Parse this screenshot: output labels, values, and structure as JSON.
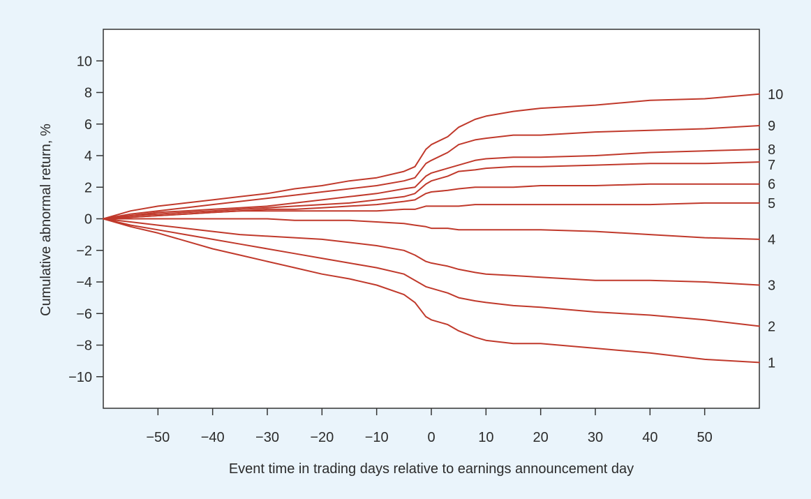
{
  "chart_data": {
    "type": "line",
    "xlabel": "Event time in trading days relative to earnings announcement day",
    "ylabel": "Cumulative abnormal return, %",
    "xlim": [
      -60,
      60
    ],
    "ylim": [
      -12,
      12
    ],
    "xticks": [
      "−50",
      "−40",
      "−30",
      "−20",
      "−10",
      "0",
      "10",
      "20",
      "30",
      "40",
      "50"
    ],
    "xtick_values": [
      -50,
      -40,
      -30,
      -20,
      -10,
      0,
      10,
      20,
      30,
      40,
      50
    ],
    "yticks": [
      "10",
      "8",
      "6",
      "4",
      "2",
      "0",
      "−2",
      "−4",
      "−6",
      "−8",
      "−10"
    ],
    "ytick_values": [
      10,
      8,
      6,
      4,
      2,
      0,
      -2,
      -4,
      -6,
      -8,
      -10
    ],
    "grid": false,
    "line_color": "#c0392b",
    "x": [
      -60,
      -55,
      -50,
      -45,
      -40,
      -35,
      -30,
      -25,
      -20,
      -15,
      -10,
      -5,
      -3,
      -1,
      0,
      3,
      5,
      8,
      10,
      15,
      20,
      30,
      40,
      50,
      60
    ],
    "series": [
      {
        "name": "10",
        "values": [
          0,
          0.5,
          0.8,
          1.0,
          1.2,
          1.4,
          1.6,
          1.9,
          2.1,
          2.4,
          2.6,
          3.0,
          3.3,
          4.4,
          4.7,
          5.2,
          5.8,
          6.3,
          6.5,
          6.8,
          7.0,
          7.2,
          7.5,
          7.6,
          7.9
        ]
      },
      {
        "name": "9",
        "values": [
          0,
          0.3,
          0.5,
          0.7,
          0.9,
          1.1,
          1.3,
          1.5,
          1.7,
          1.9,
          2.1,
          2.4,
          2.6,
          3.5,
          3.7,
          4.2,
          4.7,
          5.0,
          5.1,
          5.3,
          5.3,
          5.5,
          5.6,
          5.7,
          5.9
        ]
      },
      {
        "name": "8",
        "values": [
          0,
          0.2,
          0.4,
          0.5,
          0.6,
          0.7,
          0.8,
          1.0,
          1.2,
          1.4,
          1.6,
          1.9,
          2.0,
          2.7,
          2.9,
          3.2,
          3.4,
          3.7,
          3.8,
          3.9,
          3.9,
          4.0,
          4.2,
          4.3,
          4.4
        ]
      },
      {
        "name": "7",
        "values": [
          0,
          0.2,
          0.3,
          0.4,
          0.5,
          0.6,
          0.7,
          0.8,
          0.9,
          1.0,
          1.2,
          1.4,
          1.6,
          2.2,
          2.4,
          2.7,
          3.0,
          3.1,
          3.2,
          3.3,
          3.3,
          3.4,
          3.5,
          3.5,
          3.6
        ]
      },
      {
        "name": "6",
        "values": [
          0,
          0.1,
          0.2,
          0.3,
          0.4,
          0.5,
          0.6,
          0.6,
          0.7,
          0.8,
          0.9,
          1.1,
          1.2,
          1.6,
          1.7,
          1.8,
          1.9,
          2.0,
          2.0,
          2.0,
          2.1,
          2.1,
          2.2,
          2.2,
          2.2
        ]
      },
      {
        "name": "5",
        "values": [
          0,
          0.1,
          0.2,
          0.3,
          0.4,
          0.5,
          0.5,
          0.5,
          0.5,
          0.5,
          0.5,
          0.6,
          0.6,
          0.8,
          0.8,
          0.8,
          0.8,
          0.9,
          0.9,
          0.9,
          0.9,
          0.9,
          0.9,
          1.0,
          1.0
        ]
      },
      {
        "name": "4",
        "values": [
          0,
          0.0,
          0.0,
          0.0,
          0.0,
          0.0,
          0.0,
          -0.1,
          -0.1,
          -0.1,
          -0.2,
          -0.3,
          -0.4,
          -0.5,
          -0.6,
          -0.6,
          -0.7,
          -0.7,
          -0.7,
          -0.7,
          -0.7,
          -0.8,
          -1.0,
          -1.2,
          -1.3
        ]
      },
      {
        "name": "3",
        "values": [
          0,
          -0.2,
          -0.4,
          -0.6,
          -0.8,
          -1.0,
          -1.1,
          -1.2,
          -1.3,
          -1.5,
          -1.7,
          -2.0,
          -2.3,
          -2.7,
          -2.8,
          -3.0,
          -3.2,
          -3.4,
          -3.5,
          -3.6,
          -3.7,
          -3.9,
          -3.9,
          -4.0,
          -4.2
        ]
      },
      {
        "name": "2",
        "values": [
          0,
          -0.4,
          -0.7,
          -1.0,
          -1.3,
          -1.6,
          -1.9,
          -2.2,
          -2.5,
          -2.8,
          -3.1,
          -3.5,
          -3.9,
          -4.3,
          -4.4,
          -4.7,
          -5.0,
          -5.2,
          -5.3,
          -5.5,
          -5.6,
          -5.9,
          -6.1,
          -6.4,
          -6.8
        ]
      },
      {
        "name": "1",
        "values": [
          0,
          -0.5,
          -0.9,
          -1.4,
          -1.9,
          -2.3,
          -2.7,
          -3.1,
          -3.5,
          -3.8,
          -4.2,
          -4.8,
          -5.3,
          -6.2,
          -6.4,
          -6.7,
          -7.1,
          -7.5,
          -7.7,
          -7.9,
          -7.9,
          -8.2,
          -8.5,
          -8.9,
          -9.1
        ]
      }
    ]
  }
}
